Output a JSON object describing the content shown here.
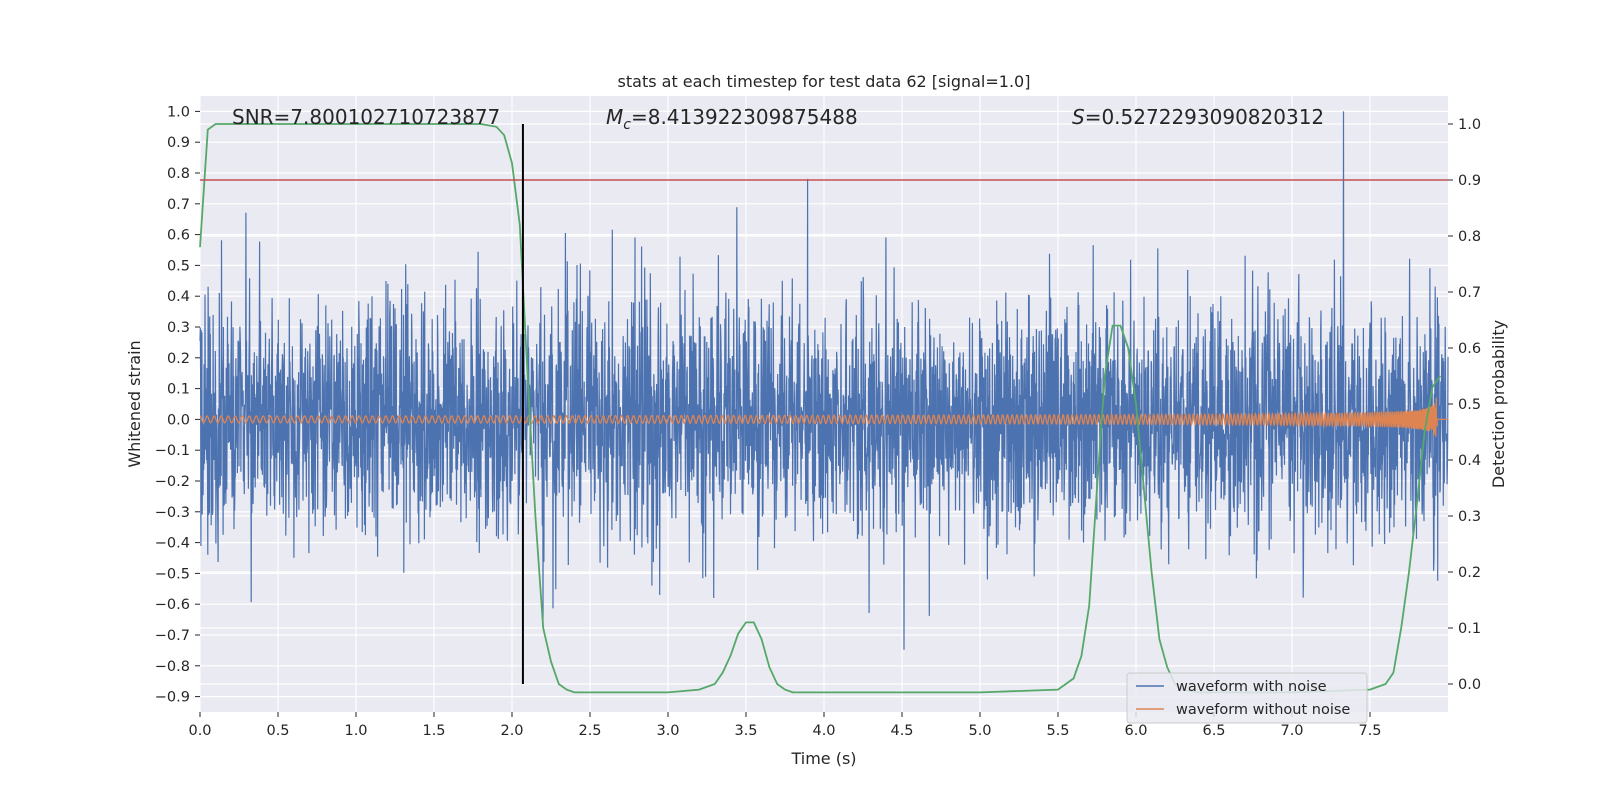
{
  "chart_data": {
    "type": "line",
    "title": "stats at each timestep for test data 62 [signal=1.0]",
    "xlabel": "Time (s)",
    "ylabel": "Whitened strain",
    "y2label": "Detection probability",
    "xlim": [
      0.0,
      8.0
    ],
    "ylim": [
      -0.95,
      1.05
    ],
    "y2lim": [
      -0.05,
      1.05
    ],
    "x_ticks": [
      "0.0",
      "0.5",
      "1.0",
      "1.5",
      "2.0",
      "2.5",
      "3.0",
      "3.5",
      "4.0",
      "4.5",
      "5.0",
      "5.5",
      "6.0",
      "6.5",
      "7.0",
      "7.5"
    ],
    "y_ticks": [
      "1.0",
      "0.9",
      "0.8",
      "0.7",
      "0.6",
      "0.5",
      "0.4",
      "0.3",
      "0.2",
      "0.1",
      "0.0",
      "−0.1",
      "−0.2",
      "−0.3",
      "−0.4",
      "−0.5",
      "−0.6",
      "−0.7",
      "−0.8",
      "−0.9"
    ],
    "y2_ticks": [
      "1.0",
      "0.9",
      "0.8",
      "0.7",
      "0.6",
      "0.5",
      "0.4",
      "0.3",
      "0.2",
      "0.1",
      "0.0"
    ],
    "grid": true,
    "legend_position": "lower-right",
    "annotations": {
      "snr": "SNR=7.800102710723877",
      "mc_symbol": "M",
      "mc_sub": "c",
      "mc_value": "=8.413922309875488",
      "s_symbol": "S",
      "s_value": "=0.5272293090820312"
    },
    "threshold_y2": 0.9,
    "marker_x": 2.07,
    "series": [
      {
        "name": "waveform with noise",
        "color": "#4c72b0",
        "noise_sigma": 0.19,
        "peak_x": 7.33,
        "peak_y": 1.0
      },
      {
        "name": "waveform without noise",
        "color": "#dd8452",
        "chirp_end": 7.93
      },
      {
        "color": "#55a868",
        "x": [
          0.0,
          0.05,
          0.1,
          0.2,
          0.4,
          0.8,
          1.2,
          1.6,
          1.8,
          1.9,
          1.95,
          2.0,
          2.05,
          2.1,
          2.15,
          2.2,
          2.25,
          2.3,
          2.35,
          2.4,
          2.6,
          3.0,
          3.2,
          3.3,
          3.35,
          3.4,
          3.45,
          3.5,
          3.55,
          3.6,
          3.65,
          3.7,
          3.75,
          3.8,
          4.0,
          5.0,
          5.5,
          5.6,
          5.65,
          5.7,
          5.75,
          5.8,
          5.85,
          5.9,
          5.95,
          6.0,
          6.05,
          6.1,
          6.15,
          6.2,
          6.25,
          6.3,
          6.4,
          7.0,
          7.5,
          7.6,
          7.65,
          7.7,
          7.75,
          7.8,
          7.85,
          7.9,
          7.95
        ],
        "values": [
          0.78,
          0.99,
          1.0,
          1.0,
          1.0,
          1.0,
          1.0,
          1.0,
          1.0,
          0.995,
          0.98,
          0.93,
          0.82,
          0.55,
          0.3,
          0.1,
          0.04,
          0.0,
          -0.01,
          -0.015,
          -0.015,
          -0.015,
          -0.01,
          0.0,
          0.02,
          0.05,
          0.09,
          0.11,
          0.11,
          0.08,
          0.03,
          0.0,
          -0.01,
          -0.015,
          -0.015,
          -0.015,
          -0.01,
          0.01,
          0.05,
          0.14,
          0.35,
          0.55,
          0.64,
          0.64,
          0.6,
          0.5,
          0.35,
          0.2,
          0.08,
          0.03,
          0.0,
          -0.01,
          -0.015,
          -0.015,
          -0.01,
          0.0,
          0.02,
          0.1,
          0.2,
          0.32,
          0.45,
          0.53,
          0.55
        ]
      }
    ]
  }
}
